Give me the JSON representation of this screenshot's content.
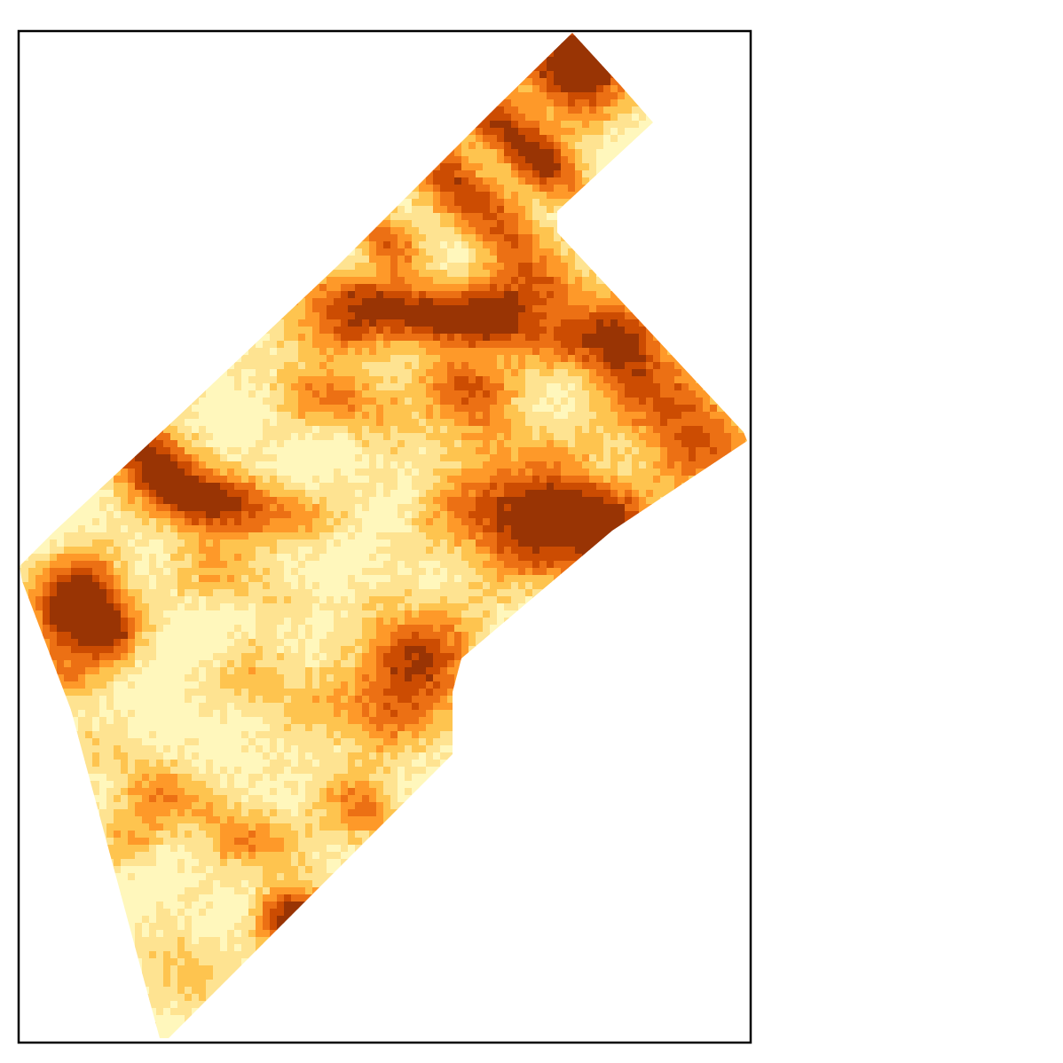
{
  "map": {
    "type": "raster-heatmap",
    "colormap": "YlOrBr",
    "palette": [
      "#fff7bc",
      "#fee391",
      "#fec44f",
      "#fe9929",
      "#ec7014",
      "#cc4c02",
      "#993404"
    ],
    "background": "#ffffff",
    "frame_color": "#000000"
  }
}
